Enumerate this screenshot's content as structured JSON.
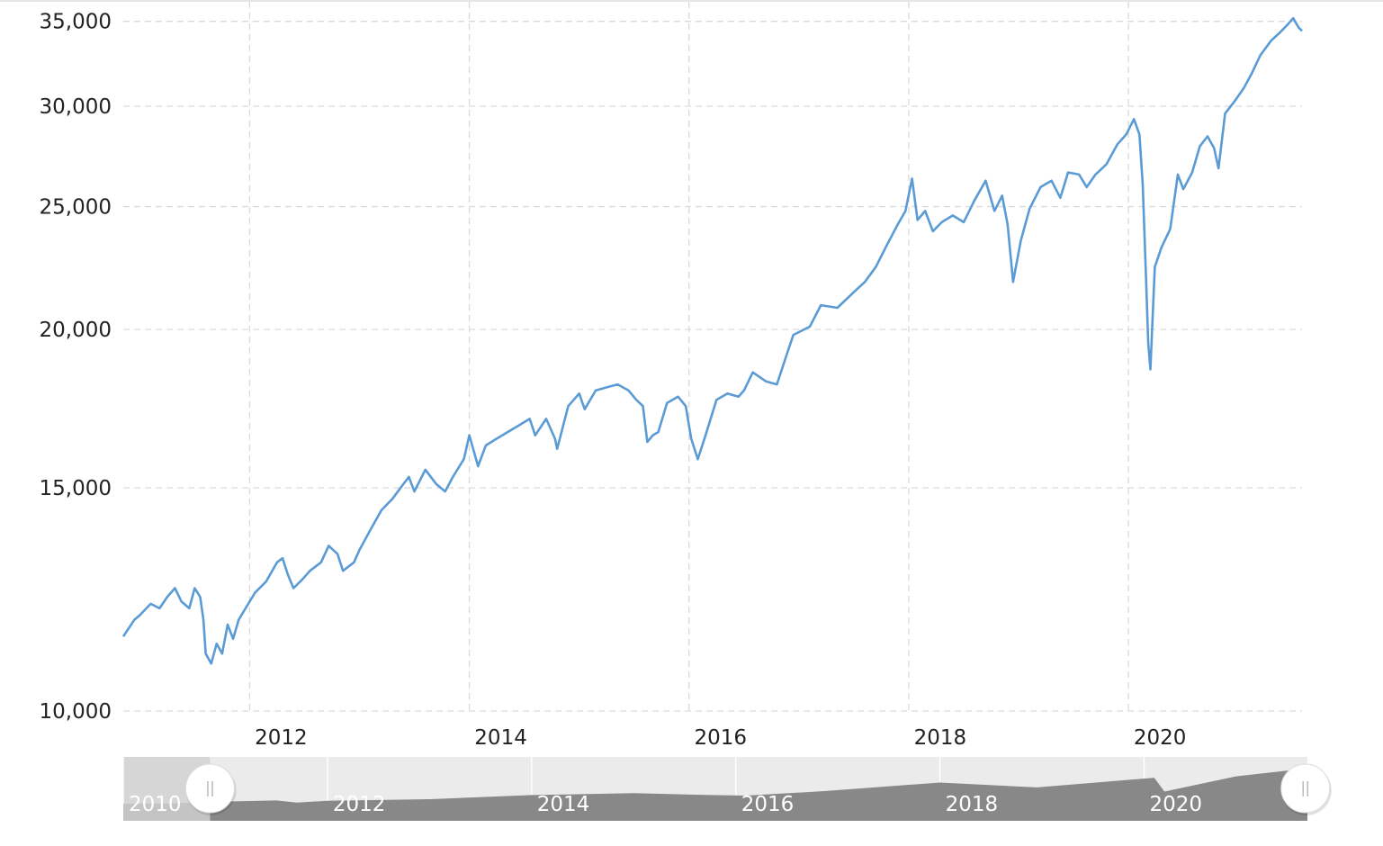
{
  "colors": {
    "series": "#5b9bd5",
    "grid": "#d9d9d9",
    "navigator_selected": "#888888",
    "navigator_unselected": "#c4c4c4",
    "navigator_background": "#ebebeb"
  },
  "chart_data": {
    "type": "line",
    "title": "",
    "xlabel": "",
    "ylabel": "",
    "y_scale": "log",
    "ylim": [
      10000,
      35500
    ],
    "xlim": [
      2010.85,
      2021.58
    ],
    "y_ticks": [
      {
        "value": 10000,
        "label": "10,000"
      },
      {
        "value": 15000,
        "label": "15,000"
      },
      {
        "value": 20000,
        "label": "20,000"
      },
      {
        "value": 25000,
        "label": "25,000"
      },
      {
        "value": 30000,
        "label": "30,000"
      },
      {
        "value": 35000,
        "label": "35,000"
      }
    ],
    "x_ticks": [
      {
        "value": 2012,
        "label": "2012"
      },
      {
        "value": 2014,
        "label": "2014"
      },
      {
        "value": 2016,
        "label": "2016"
      },
      {
        "value": 2018,
        "label": "2018"
      },
      {
        "value": 2020,
        "label": "2020"
      }
    ],
    "grid": true,
    "series": [
      {
        "points": [
          [
            2010.85,
            11450
          ],
          [
            2010.95,
            11800
          ],
          [
            2011.0,
            11900
          ],
          [
            2011.1,
            12150
          ],
          [
            2011.18,
            12050
          ],
          [
            2011.25,
            12300
          ],
          [
            2011.32,
            12500
          ],
          [
            2011.38,
            12200
          ],
          [
            2011.45,
            12050
          ],
          [
            2011.5,
            12500
          ],
          [
            2011.55,
            12300
          ],
          [
            2011.58,
            11800
          ],
          [
            2011.6,
            11100
          ],
          [
            2011.65,
            10900
          ],
          [
            2011.7,
            11300
          ],
          [
            2011.75,
            11100
          ],
          [
            2011.8,
            11700
          ],
          [
            2011.85,
            11400
          ],
          [
            2011.9,
            11800
          ],
          [
            2011.95,
            12000
          ],
          [
            2012.05,
            12400
          ],
          [
            2012.15,
            12650
          ],
          [
            2012.25,
            13100
          ],
          [
            2012.3,
            13200
          ],
          [
            2012.35,
            12800
          ],
          [
            2012.4,
            12500
          ],
          [
            2012.48,
            12700
          ],
          [
            2012.55,
            12900
          ],
          [
            2012.65,
            13100
          ],
          [
            2012.72,
            13500
          ],
          [
            2012.8,
            13300
          ],
          [
            2012.85,
            12900
          ],
          [
            2012.95,
            13100
          ],
          [
            2013.0,
            13400
          ],
          [
            2013.1,
            13900
          ],
          [
            2013.2,
            14400
          ],
          [
            2013.3,
            14700
          ],
          [
            2013.4,
            15100
          ],
          [
            2013.45,
            15300
          ],
          [
            2013.5,
            14900
          ],
          [
            2013.6,
            15500
          ],
          [
            2013.7,
            15100
          ],
          [
            2013.78,
            14900
          ],
          [
            2013.85,
            15300
          ],
          [
            2013.95,
            15800
          ],
          [
            2014.0,
            16500
          ],
          [
            2014.08,
            15600
          ],
          [
            2014.15,
            16200
          ],
          [
            2014.25,
            16400
          ],
          [
            2014.35,
            16600
          ],
          [
            2014.45,
            16800
          ],
          [
            2014.55,
            17000
          ],
          [
            2014.6,
            16500
          ],
          [
            2014.7,
            17000
          ],
          [
            2014.78,
            16400
          ],
          [
            2014.8,
            16100
          ],
          [
            2014.9,
            17400
          ],
          [
            2015.0,
            17800
          ],
          [
            2015.05,
            17300
          ],
          [
            2015.15,
            17900
          ],
          [
            2015.25,
            18000
          ],
          [
            2015.35,
            18100
          ],
          [
            2015.45,
            17900
          ],
          [
            2015.52,
            17600
          ],
          [
            2015.58,
            17400
          ],
          [
            2015.62,
            16300
          ],
          [
            2015.67,
            16500
          ],
          [
            2015.72,
            16600
          ],
          [
            2015.8,
            17500
          ],
          [
            2015.9,
            17700
          ],
          [
            2015.97,
            17400
          ],
          [
            2016.02,
            16400
          ],
          [
            2016.08,
            15800
          ],
          [
            2016.15,
            16500
          ],
          [
            2016.25,
            17600
          ],
          [
            2016.35,
            17800
          ],
          [
            2016.45,
            17700
          ],
          [
            2016.5,
            17900
          ],
          [
            2016.58,
            18500
          ],
          [
            2016.7,
            18200
          ],
          [
            2016.8,
            18100
          ],
          [
            2016.88,
            19000
          ],
          [
            2016.95,
            19800
          ],
          [
            2017.1,
            20100
          ],
          [
            2017.2,
            20900
          ],
          [
            2017.35,
            20800
          ],
          [
            2017.5,
            21400
          ],
          [
            2017.6,
            21800
          ],
          [
            2017.7,
            22400
          ],
          [
            2017.8,
            23300
          ],
          [
            2017.9,
            24200
          ],
          [
            2017.97,
            24800
          ],
          [
            2018.03,
            26300
          ],
          [
            2018.08,
            24400
          ],
          [
            2018.15,
            24800
          ],
          [
            2018.22,
            23900
          ],
          [
            2018.3,
            24300
          ],
          [
            2018.4,
            24600
          ],
          [
            2018.5,
            24300
          ],
          [
            2018.6,
            25300
          ],
          [
            2018.7,
            26200
          ],
          [
            2018.78,
            24800
          ],
          [
            2018.85,
            25500
          ],
          [
            2018.9,
            24200
          ],
          [
            2018.95,
            21800
          ],
          [
            2019.02,
            23500
          ],
          [
            2019.1,
            24900
          ],
          [
            2019.2,
            25900
          ],
          [
            2019.3,
            26200
          ],
          [
            2019.38,
            25400
          ],
          [
            2019.45,
            26600
          ],
          [
            2019.55,
            26500
          ],
          [
            2019.62,
            25900
          ],
          [
            2019.7,
            26500
          ],
          [
            2019.8,
            27000
          ],
          [
            2019.9,
            28000
          ],
          [
            2019.98,
            28500
          ],
          [
            2020.05,
            29300
          ],
          [
            2020.1,
            28500
          ],
          [
            2020.13,
            26000
          ],
          [
            2020.16,
            22000
          ],
          [
            2020.18,
            19500
          ],
          [
            2020.2,
            18600
          ],
          [
            2020.24,
            22400
          ],
          [
            2020.3,
            23200
          ],
          [
            2020.38,
            24000
          ],
          [
            2020.45,
            26500
          ],
          [
            2020.5,
            25800
          ],
          [
            2020.58,
            26600
          ],
          [
            2020.65,
            27900
          ],
          [
            2020.72,
            28400
          ],
          [
            2020.78,
            27800
          ],
          [
            2020.82,
            26800
          ],
          [
            2020.88,
            29600
          ],
          [
            2020.97,
            30300
          ],
          [
            2021.05,
            31000
          ],
          [
            2021.12,
            31800
          ],
          [
            2021.2,
            32900
          ],
          [
            2021.3,
            33800
          ],
          [
            2021.38,
            34300
          ],
          [
            2021.45,
            34800
          ],
          [
            2021.5,
            35200
          ],
          [
            2021.55,
            34600
          ],
          [
            2021.58,
            34400
          ]
        ]
      }
    ],
    "navigator": {
      "labels": [
        "2010",
        "2012",
        "2014",
        "2016",
        "2018",
        "2020"
      ],
      "range": [
        2010,
        2021.6
      ],
      "selected": [
        2010.85,
        2021.58
      ],
      "profile": [
        [
          2010.0,
          10100
        ],
        [
          2010.5,
          10400
        ],
        [
          2010.85,
          11450
        ],
        [
          2011.5,
          12500
        ],
        [
          2011.7,
          11000
        ],
        [
          2012.0,
          12300
        ],
        [
          2013.0,
          13400
        ],
        [
          2014.0,
          16400
        ],
        [
          2015.0,
          17800
        ],
        [
          2015.7,
          16500
        ],
        [
          2016.1,
          16000
        ],
        [
          2016.9,
          19400
        ],
        [
          2018.0,
          25500
        ],
        [
          2018.95,
          22000
        ],
        [
          2020.1,
          29000
        ],
        [
          2020.2,
          19000
        ],
        [
          2020.9,
          30000
        ],
        [
          2021.5,
          35000
        ],
        [
          2021.6,
          34500
        ]
      ]
    }
  }
}
